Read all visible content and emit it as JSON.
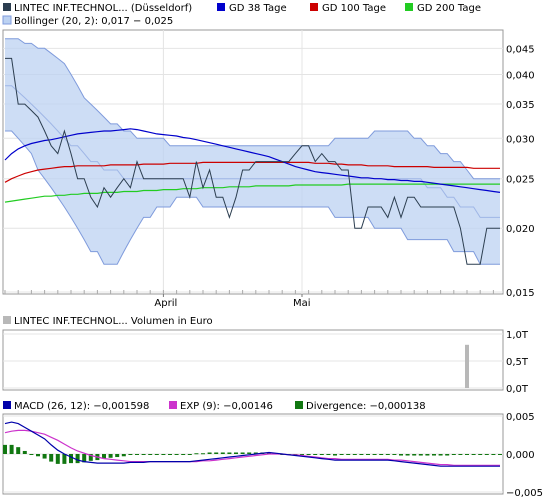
{
  "colors": {
    "price": "#2c3e50",
    "gd38": "#0000cc",
    "gd100": "#cc0000",
    "gd200": "#22cc22",
    "bollinger_fill": "#bcd2f2",
    "bollinger_line": "#7f9bdc",
    "macd": "#0000aa",
    "exp": "#cc33cc",
    "divergence": "#117711",
    "volume": "#b8b8b8"
  },
  "legend": {
    "price": "LINTEC INF.TECHNOL... (Düsseldorf)",
    "gd38": "GD 38 Tage",
    "gd100": "GD 100 Tage",
    "gd200": "GD 200 Tage",
    "bollinger": "Bollinger (20, 2): 0,017 − 0,025",
    "volume": "LINTEC INF.TECHNOL... Volumen in Euro",
    "macd": "MACD (26, 12): −0,001598",
    "exp": "EXP (9): −0,00146",
    "divergence": "Divergence: −0,000138"
  },
  "chart_data": [
    {
      "type": "line",
      "name": "price",
      "ylim": [
        0.015,
        0.048
      ],
      "yscale": "log",
      "x_tick_labels": [
        "April",
        "Mai"
      ],
      "y_tick_labels": [
        "0,045",
        "0,040",
        "0,035",
        "0,030",
        "0,025",
        "0,020",
        "0,015"
      ],
      "y_ticks": [
        0.045,
        0.04,
        0.035,
        0.03,
        0.025,
        0.02,
        0.015
      ],
      "series": [
        {
          "name": "LINTEC INF.TECHNOL... (Düsseldorf)",
          "values": [
            0.043,
            0.043,
            0.035,
            0.035,
            0.034,
            0.033,
            0.031,
            0.029,
            0.028,
            0.031,
            0.028,
            0.025,
            0.025,
            0.023,
            0.022,
            0.024,
            0.023,
            0.024,
            0.025,
            0.024,
            0.027,
            0.025,
            0.025,
            0.025,
            0.025,
            0.025,
            0.025,
            0.025,
            0.023,
            0.027,
            0.024,
            0.026,
            0.023,
            0.023,
            0.021,
            0.023,
            0.026,
            0.026,
            0.027,
            0.027,
            0.027,
            0.027,
            0.027,
            0.027,
            0.028,
            0.029,
            0.029,
            0.027,
            0.028,
            0.027,
            0.027,
            0.026,
            0.026,
            0.02,
            0.02,
            0.022,
            0.022,
            0.022,
            0.021,
            0.023,
            0.021,
            0.023,
            0.023,
            0.022,
            0.022,
            0.022,
            0.022,
            0.022,
            0.022,
            0.02,
            0.017,
            0.017,
            0.017,
            0.02,
            0.02,
            0.02
          ]
        },
        {
          "name": "GD 38 Tage",
          "values": [
            0.0272,
            0.028,
            0.0286,
            0.029,
            0.0293,
            0.0295,
            0.0297,
            0.0298,
            0.03,
            0.0302,
            0.0304,
            0.0306,
            0.0307,
            0.0308,
            0.0309,
            0.031,
            0.031,
            0.0311,
            0.0312,
            0.0313,
            0.0312,
            0.031,
            0.0308,
            0.0306,
            0.0305,
            0.0304,
            0.0303,
            0.0301,
            0.03,
            0.0298,
            0.0296,
            0.0294,
            0.0292,
            0.029,
            0.0288,
            0.0286,
            0.0284,
            0.0282,
            0.028,
            0.0278,
            0.0276,
            0.0273,
            0.027,
            0.0267,
            0.0264,
            0.0262,
            0.026,
            0.0258,
            0.0257,
            0.0256,
            0.0255,
            0.0254,
            0.0253,
            0.0252,
            0.0251,
            0.0251,
            0.025,
            0.025,
            0.0249,
            0.0249,
            0.0248,
            0.0248,
            0.0247,
            0.0247,
            0.0246,
            0.0245,
            0.0244,
            0.0243,
            0.0242,
            0.0241,
            0.024,
            0.0239,
            0.0238,
            0.0237,
            0.0236,
            0.0235
          ]
        },
        {
          "name": "GD 100 Tage",
          "values": [
            0.0246,
            0.025,
            0.0253,
            0.0256,
            0.0258,
            0.026,
            0.0261,
            0.0262,
            0.0263,
            0.0264,
            0.0264,
            0.0265,
            0.0265,
            0.0265,
            0.0265,
            0.0265,
            0.0266,
            0.0266,
            0.0266,
            0.0266,
            0.0266,
            0.0267,
            0.0267,
            0.0267,
            0.0267,
            0.0268,
            0.0268,
            0.0268,
            0.0268,
            0.0268,
            0.0269,
            0.0269,
            0.0269,
            0.0269,
            0.0269,
            0.0269,
            0.0269,
            0.0269,
            0.0269,
            0.0269,
            0.0269,
            0.0269,
            0.0269,
            0.0269,
            0.0269,
            0.0269,
            0.0269,
            0.0268,
            0.0268,
            0.0268,
            0.0267,
            0.0267,
            0.0266,
            0.0266,
            0.0266,
            0.0265,
            0.0265,
            0.0265,
            0.0265,
            0.0264,
            0.0264,
            0.0264,
            0.0264,
            0.0264,
            0.0264,
            0.0263,
            0.0263,
            0.0263,
            0.0263,
            0.0263,
            0.0263,
            0.0262,
            0.0262,
            0.0262,
            0.0262,
            0.0262
          ]
        },
        {
          "name": "GD 200 Tage",
          "values": [
            0.0225,
            0.0226,
            0.0227,
            0.0228,
            0.0229,
            0.023,
            0.0231,
            0.0231,
            0.0232,
            0.0232,
            0.0233,
            0.0233,
            0.0234,
            0.0234,
            0.0234,
            0.0235,
            0.0235,
            0.0235,
            0.0236,
            0.0236,
            0.0236,
            0.0237,
            0.0237,
            0.0237,
            0.0238,
            0.0238,
            0.0238,
            0.0239,
            0.0239,
            0.0239,
            0.024,
            0.024,
            0.024,
            0.024,
            0.0241,
            0.0241,
            0.0241,
            0.0241,
            0.0242,
            0.0242,
            0.0242,
            0.0242,
            0.0242,
            0.0242,
            0.0243,
            0.0243,
            0.0243,
            0.0243,
            0.0243,
            0.0243,
            0.0243,
            0.0243,
            0.0244,
            0.0244,
            0.0244,
            0.0244,
            0.0244,
            0.0244,
            0.0244,
            0.0244,
            0.0244,
            0.0244,
            0.0244,
            0.0244,
            0.0244,
            0.0244,
            0.0244,
            0.0244,
            0.0244,
            0.0244,
            0.0244,
            0.0244,
            0.0244,
            0.0244,
            0.0244,
            0.0244
          ]
        },
        {
          "name": "Bollinger upper",
          "values": [
            0.047,
            0.047,
            0.047,
            0.046,
            0.046,
            0.045,
            0.045,
            0.044,
            0.043,
            0.042,
            0.04,
            0.038,
            0.036,
            0.035,
            0.034,
            0.033,
            0.032,
            0.032,
            0.031,
            0.031,
            0.03,
            0.03,
            0.03,
            0.03,
            0.03,
            0.029,
            0.029,
            0.029,
            0.029,
            0.029,
            0.029,
            0.029,
            0.029,
            0.029,
            0.029,
            0.029,
            0.029,
            0.029,
            0.029,
            0.029,
            0.029,
            0.029,
            0.029,
            0.029,
            0.029,
            0.029,
            0.029,
            0.029,
            0.029,
            0.029,
            0.03,
            0.03,
            0.03,
            0.03,
            0.03,
            0.03,
            0.031,
            0.031,
            0.031,
            0.031,
            0.031,
            0.031,
            0.03,
            0.03,
            0.029,
            0.029,
            0.028,
            0.028,
            0.027,
            0.027,
            0.026,
            0.025,
            0.025,
            0.025,
            0.025,
            0.025
          ]
        },
        {
          "name": "Bollinger lower",
          "values": [
            0.031,
            0.031,
            0.03,
            0.029,
            0.028,
            0.026,
            0.025,
            0.024,
            0.023,
            0.022,
            0.021,
            0.02,
            0.019,
            0.018,
            0.018,
            0.017,
            0.017,
            0.017,
            0.018,
            0.019,
            0.02,
            0.021,
            0.021,
            0.022,
            0.022,
            0.022,
            0.023,
            0.023,
            0.023,
            0.023,
            0.022,
            0.022,
            0.022,
            0.022,
            0.022,
            0.022,
            0.022,
            0.022,
            0.022,
            0.022,
            0.022,
            0.022,
            0.022,
            0.022,
            0.022,
            0.022,
            0.022,
            0.022,
            0.022,
            0.022,
            0.021,
            0.021,
            0.021,
            0.021,
            0.021,
            0.021,
            0.02,
            0.02,
            0.02,
            0.02,
            0.02,
            0.019,
            0.019,
            0.019,
            0.019,
            0.019,
            0.019,
            0.019,
            0.018,
            0.018,
            0.018,
            0.018,
            0.017,
            0.017,
            0.017,
            0.017
          ]
        },
        {
          "name": "Bollinger mid",
          "values": [
            0.038,
            0.038,
            0.037,
            0.036,
            0.035,
            0.034,
            0.033,
            0.032,
            0.031,
            0.03,
            0.029,
            0.029,
            0.028,
            0.027,
            0.027,
            0.026,
            0.026,
            0.026,
            0.025,
            0.025,
            0.025,
            0.025,
            0.025,
            0.025,
            0.025,
            0.025,
            0.025,
            0.025,
            0.025,
            0.025,
            0.025,
            0.025,
            0.025,
            0.025,
            0.025,
            0.025,
            0.025,
            0.025,
            0.025,
            0.025,
            0.025,
            0.025,
            0.025,
            0.025,
            0.025,
            0.025,
            0.025,
            0.025,
            0.025,
            0.025,
            0.025,
            0.025,
            0.025,
            0.025,
            0.025,
            0.025,
            0.025,
            0.025,
            0.025,
            0.025,
            0.025,
            0.025,
            0.025,
            0.025,
            0.024,
            0.024,
            0.024,
            0.023,
            0.023,
            0.022,
            0.022,
            0.022,
            0.021,
            0.021,
            0.021,
            0.021
          ]
        }
      ]
    },
    {
      "type": "bar",
      "name": "volume",
      "ylim": [
        0,
        1
      ],
      "y_tick_labels": [
        "1,0T",
        "0,5T",
        "0,0T"
      ],
      "y_ticks": [
        1.0,
        0.5,
        0.0
      ],
      "series": [
        {
          "name": "LINTEC INF.TECHNOL... Volumen in Euro",
          "values": [
            0,
            0,
            0,
            0,
            0,
            0,
            0,
            0,
            0,
            0,
            0,
            0,
            0,
            0,
            0,
            0,
            0,
            0,
            0,
            0,
            0,
            0,
            0,
            0,
            0,
            0,
            0,
            0,
            0,
            0,
            0,
            0,
            0,
            0,
            0,
            0,
            0,
            0,
            0,
            0,
            0,
            0,
            0,
            0,
            0,
            0,
            0,
            0,
            0,
            0,
            0,
            0,
            0,
            0,
            0,
            0,
            0,
            0,
            0,
            0,
            0,
            0,
            0,
            0,
            0,
            0,
            0,
            0,
            0,
            0,
            0.8,
            0,
            0,
            0,
            0,
            0
          ]
        }
      ]
    },
    {
      "type": "line",
      "name": "macd",
      "ylim": [
        -0.005,
        0.005
      ],
      "y_tick_labels": [
        "0,005",
        "0,000",
        "−0,005"
      ],
      "y_ticks": [
        0.005,
        0.0,
        -0.005
      ],
      "series": [
        {
          "name": "MACD (26, 12)",
          "values": [
            0.004,
            0.0042,
            0.004,
            0.0035,
            0.003,
            0.0025,
            0.002,
            0.0012,
            0.0005,
            0.0,
            -0.0004,
            -0.0008,
            -0.001,
            -0.0011,
            -0.0012,
            -0.0012,
            -0.0012,
            -0.0012,
            -0.0012,
            -0.0011,
            -0.0011,
            -0.0011,
            -0.001,
            -0.001,
            -0.001,
            -0.001,
            -0.001,
            -0.001,
            -0.001,
            -0.0009,
            -0.0008,
            -0.0007,
            -0.0006,
            -0.0005,
            -0.0004,
            -0.0003,
            -0.0002,
            -0.0001,
            0.0,
            0.0001,
            0.0002,
            0.0001,
            0.0,
            -0.0001,
            -0.0002,
            -0.0003,
            -0.0004,
            -0.0005,
            -0.0006,
            -0.0007,
            -0.0008,
            -0.0008,
            -0.0008,
            -0.0008,
            -0.0008,
            -0.0008,
            -0.0008,
            -0.0008,
            -0.0008,
            -0.0009,
            -0.001,
            -0.0011,
            -0.0012,
            -0.0013,
            -0.0014,
            -0.0015,
            -0.0016,
            -0.0016,
            -0.0016,
            -0.0016,
            -0.0016,
            -0.0016,
            -0.0016,
            -0.0016,
            -0.0016,
            -0.0016
          ]
        },
        {
          "name": "EXP (9)",
          "values": [
            0.0028,
            0.003,
            0.0031,
            0.0031,
            0.003,
            0.0028,
            0.0026,
            0.0022,
            0.0018,
            0.0013,
            0.0008,
            0.0004,
            0.0001,
            -0.0002,
            -0.0004,
            -0.0006,
            -0.0007,
            -0.0008,
            -0.0009,
            -0.001,
            -0.001,
            -0.001,
            -0.001,
            -0.001,
            -0.001,
            -0.001,
            -0.001,
            -0.001,
            -0.001,
            -0.001,
            -0.0009,
            -0.0009,
            -0.0008,
            -0.0007,
            -0.0006,
            -0.0005,
            -0.0004,
            -0.0003,
            -0.0002,
            -0.0001,
            0.0,
            0.0,
            0.0,
            -0.0001,
            -0.0001,
            -0.0002,
            -0.0003,
            -0.0004,
            -0.0005,
            -0.0006,
            -0.0006,
            -0.0007,
            -0.0007,
            -0.0007,
            -0.0007,
            -0.0007,
            -0.0007,
            -0.0007,
            -0.0007,
            -0.0008,
            -0.0008,
            -0.0009,
            -0.001,
            -0.0011,
            -0.0012,
            -0.0013,
            -0.0014,
            -0.0014,
            -0.0015,
            -0.0015,
            -0.0015,
            -0.0015,
            -0.0015,
            -0.0015,
            -0.0015,
            -0.0015
          ]
        },
        {
          "name": "Divergence",
          "type": "bar",
          "values": [
            0.0012,
            0.0012,
            0.0009,
            0.0004,
            0.0,
            -0.0003,
            -0.0006,
            -0.001,
            -0.0013,
            -0.0013,
            -0.0012,
            -0.0012,
            -0.0011,
            -0.0009,
            -0.0008,
            -0.0006,
            -0.0005,
            -0.0004,
            -0.0003,
            -0.0001,
            -0.0001,
            -0.0001,
            0.0,
            0.0,
            0.0,
            0.0,
            0.0,
            0.0,
            0.0,
            0.0001,
            0.0001,
            0.0002,
            0.0002,
            0.0002,
            0.0002,
            0.0002,
            0.0002,
            0.0002,
            0.0002,
            0.0002,
            0.0002,
            0.0001,
            0.0,
            0.0,
            -0.0001,
            -0.0001,
            -0.0001,
            -0.0001,
            -0.0001,
            -0.0001,
            -0.0002,
            -0.0001,
            -0.0001,
            -0.0001,
            -0.0001,
            -0.0001,
            -0.0001,
            -0.0001,
            -0.0001,
            -0.0001,
            -0.0002,
            -0.0002,
            -0.0002,
            -0.0002,
            -0.0002,
            -0.0002,
            -0.0002,
            -0.0002,
            -0.0001,
            -0.0001,
            -0.0001,
            -0.0001,
            -0.0001,
            -0.0001,
            -0.0001,
            -0.0001
          ]
        }
      ]
    }
  ]
}
